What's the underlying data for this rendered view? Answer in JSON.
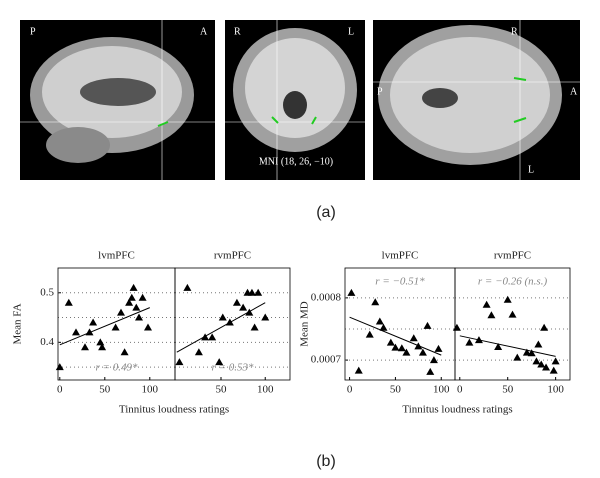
{
  "figure_a": {
    "sagittal": [
      "P",
      "A"
    ],
    "coronal": [
      "R",
      "L"
    ],
    "axial": [
      "R",
      "P",
      "A",
      "L"
    ],
    "coordinates": "MNI (18, 26, −10)",
    "label": "(a)"
  },
  "figure_b": {
    "label": "(b)"
  },
  "chart_data": [
    {
      "type": "scatter",
      "ylabel": "Mean FA",
      "xlabel": "Tinnitus loudness ratings",
      "color": "#000000",
      "ylim": [
        0.324,
        0.55
      ],
      "yticks": [
        0.4,
        0.5
      ],
      "ygrid": [
        0.35,
        0.4,
        0.45,
        0.5
      ],
      "panels": [
        {
          "title": "lvmPFC",
          "xlim": [
            -2,
            128
          ],
          "xticks": [
            0,
            50,
            100
          ],
          "x": [
            0,
            10,
            18,
            28,
            33,
            37,
            45,
            47,
            62,
            68,
            72,
            77,
            80,
            82,
            85,
            88,
            92,
            98
          ],
          "y": [
            0.35,
            0.48,
            0.42,
            0.39,
            0.42,
            0.44,
            0.4,
            0.39,
            0.43,
            0.46,
            0.38,
            0.48,
            0.49,
            0.51,
            0.47,
            0.45,
            0.49,
            0.43
          ],
          "fit": {
            "x": [
              0,
              100
            ],
            "y": [
              0.395,
              0.47
            ]
          },
          "annotation": "r = 0.49*"
        },
        {
          "title": "rvmPFC",
          "xlim": [
            -2,
            128
          ],
          "xticks": [
            50,
            100
          ],
          "x": [
            3,
            12,
            25,
            32,
            40,
            48,
            52,
            60,
            68,
            75,
            80,
            82,
            85,
            88,
            92,
            100
          ],
          "y": [
            0.36,
            0.51,
            0.38,
            0.41,
            0.41,
            0.36,
            0.45,
            0.44,
            0.48,
            0.47,
            0.5,
            0.46,
            0.5,
            0.43,
            0.5,
            0.45
          ],
          "fit": {
            "x": [
              0,
              100
            ],
            "y": [
              0.38,
              0.48
            ]
          },
          "annotation": "r = 0.53*"
        }
      ]
    },
    {
      "type": "scatter",
      "ylabel": "Mean MD",
      "xlabel": "Tinnitus loudness ratings",
      "color": "#000000",
      "ylim": [
        0.000668,
        0.000848
      ],
      "yticks": [
        0.0007,
        0.0008
      ],
      "ygrid": [
        0.0007,
        0.00075,
        0.0008
      ],
      "panels": [
        {
          "title": "lvmPFC",
          "xlim": [
            -5,
            115
          ],
          "xticks": [
            0,
            50,
            100
          ],
          "x": [
            2,
            10,
            22,
            28,
            33,
            37,
            45,
            50,
            57,
            62,
            70,
            75,
            80,
            85,
            88,
            92,
            97
          ],
          "y": [
            0.000808,
            0.000683,
            0.000741,
            0.000793,
            0.000762,
            0.000752,
            0.000728,
            0.00072,
            0.000719,
            0.000712,
            0.000735,
            0.000722,
            0.000712,
            0.000755,
            0.000681,
            0.0007,
            0.000718
          ],
          "fit": {
            "x": [
              0,
              100
            ],
            "y": [
              0.000769,
              0.000708
            ]
          },
          "annotation": "r = −0.51*"
        },
        {
          "title": "rvmPFC",
          "xlim": [
            -5,
            115
          ],
          "xticks": [
            0,
            50,
            100
          ],
          "x": [
            -3,
            10,
            20,
            28,
            33,
            40,
            50,
            55,
            60,
            70,
            75,
            80,
            82,
            85,
            88,
            90,
            98,
            100
          ],
          "y": [
            0.000752,
            0.000728,
            0.000732,
            0.000789,
            0.000772,
            0.000721,
            0.000797,
            0.000773,
            0.000704,
            0.000712,
            0.000711,
            0.000698,
            0.000725,
            0.000693,
            0.000752,
            0.000688,
            0.000683,
            0.000698
          ],
          "fit": {
            "x": [
              0,
              100
            ],
            "y": [
              0.000739,
              0.000706
            ]
          },
          "annotation": "r = −0.26 (n.s.)"
        }
      ]
    }
  ]
}
